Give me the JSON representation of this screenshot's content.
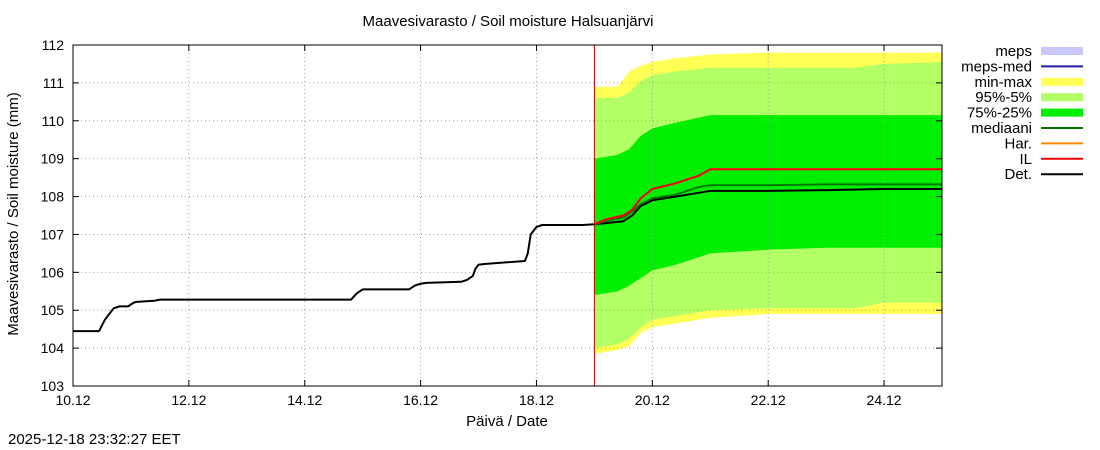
{
  "chart_data": {
    "type": "area",
    "title": "Maavesivarasto / Soil moisture   Halsuanjärvi",
    "xlabel": "Päivä / Date",
    "ylabel": "Maavesivarasto / Soil moisture (mm)",
    "xlim": [
      10.0,
      25.0
    ],
    "ylim": [
      103,
      112
    ],
    "grid": true,
    "x_unit": "days of December",
    "x_ticks": [
      10,
      12,
      14,
      16,
      18,
      20,
      22,
      24
    ],
    "x_tick_labels": [
      "10.12",
      "12.12",
      "14.12",
      "16.12",
      "18.12",
      "20.12",
      "22.12",
      "24.12"
    ],
    "y_ticks": [
      103,
      104,
      105,
      106,
      107,
      108,
      109,
      110,
      111,
      112
    ],
    "y_tick_labels": [
      "103",
      "104",
      "105",
      "106",
      "107",
      "108",
      "109",
      "110",
      "111",
      "112"
    ],
    "forecast_start": 19.0,
    "legend_position": "outside-right",
    "legend": [
      {
        "label": "meps",
        "kind": "band",
        "color": "#c8c8ff"
      },
      {
        "label": "meps-med",
        "kind": "line",
        "color": "#2020a0"
      },
      {
        "label": "min-max",
        "kind": "band",
        "color": "#ffff55"
      },
      {
        "label": "95%-5%",
        "kind": "band",
        "color": "#b3ff66"
      },
      {
        "label": "75%-25%",
        "kind": "band",
        "color": "#00ee00"
      },
      {
        "label": "mediaani",
        "kind": "line",
        "color": "#007700"
      },
      {
        "label": "Har.",
        "kind": "line",
        "color": "#ff8800"
      },
      {
        "label": "IL",
        "kind": "line",
        "color": "#ee0000"
      },
      {
        "label": "Det.",
        "kind": "line",
        "color": "#000000"
      }
    ],
    "bands": [
      {
        "name": "min-max",
        "color": "#ffff55",
        "x": [
          19.0,
          19.4,
          19.6,
          19.8,
          20.0,
          20.4,
          21.0,
          22.0,
          23.0,
          23.5,
          24.0,
          25.0
        ],
        "upper": [
          110.9,
          110.9,
          111.3,
          111.45,
          111.55,
          111.65,
          111.75,
          111.8,
          111.8,
          111.8,
          111.8,
          111.8
        ],
        "lower": [
          103.85,
          103.95,
          104.05,
          104.4,
          104.55,
          104.65,
          104.8,
          104.9,
          104.9,
          104.9,
          104.9,
          104.9
        ]
      },
      {
        "name": "95%-5%",
        "color": "#b3ff66",
        "x": [
          19.0,
          19.4,
          19.6,
          19.8,
          20.0,
          20.4,
          21.0,
          22.0,
          23.0,
          23.5,
          24.0,
          25.0
        ],
        "upper": [
          110.6,
          110.6,
          110.75,
          111.05,
          111.2,
          111.3,
          111.4,
          111.4,
          111.4,
          111.4,
          111.5,
          111.55
        ],
        "lower": [
          104.0,
          104.1,
          104.25,
          104.55,
          104.75,
          104.85,
          105.0,
          105.05,
          105.05,
          105.05,
          105.2,
          105.2
        ]
      },
      {
        "name": "75%-25%",
        "color": "#00ee00",
        "x": [
          19.0,
          19.4,
          19.6,
          19.8,
          20.0,
          20.4,
          21.0,
          22.0,
          23.0,
          23.5,
          24.0,
          25.0
        ],
        "upper": [
          109.0,
          109.1,
          109.25,
          109.6,
          109.8,
          109.95,
          110.15,
          110.15,
          110.15,
          110.15,
          110.15,
          110.15
        ],
        "lower": [
          105.4,
          105.5,
          105.65,
          105.85,
          106.05,
          106.2,
          106.5,
          106.6,
          106.65,
          106.65,
          106.65,
          106.65
        ]
      }
    ],
    "series": [
      {
        "name": "Det.",
        "color": "#000000",
        "width": 2,
        "x": [
          10.0,
          10.45,
          10.55,
          10.7,
          10.8,
          10.95,
          11.0,
          11.05,
          11.1,
          11.4,
          11.5,
          14.8,
          14.9,
          15.0,
          15.8,
          15.9,
          16.0,
          16.1,
          16.7,
          16.8,
          16.9,
          16.95,
          17.0,
          17.1,
          17.8,
          17.85,
          17.9,
          17.95,
          18.0,
          18.1,
          18.8,
          19.0,
          19.2,
          19.5,
          19.65,
          19.8,
          20.0,
          20.4,
          20.8,
          21.0,
          22.0,
          23.0,
          24.0,
          25.0
        ],
        "y": [
          104.45,
          104.45,
          104.75,
          105.05,
          105.1,
          105.1,
          105.15,
          105.2,
          105.22,
          105.25,
          105.28,
          105.28,
          105.45,
          105.55,
          105.55,
          105.65,
          105.7,
          105.72,
          105.75,
          105.8,
          105.9,
          106.1,
          106.2,
          106.22,
          106.3,
          106.5,
          107.0,
          107.1,
          107.2,
          107.25,
          107.25,
          107.27,
          107.3,
          107.35,
          107.5,
          107.75,
          107.9,
          108.0,
          108.1,
          108.15,
          108.15,
          108.17,
          108.2,
          108.2
        ]
      },
      {
        "name": "mediaani",
        "color": "#007700",
        "width": 2,
        "x": [
          19.0,
          19.2,
          19.5,
          19.65,
          19.8,
          20.0,
          20.4,
          20.8,
          21.0,
          22.0,
          23.0,
          24.0,
          25.0
        ],
        "y": [
          107.27,
          107.35,
          107.45,
          107.6,
          107.8,
          107.95,
          108.05,
          108.25,
          108.3,
          108.3,
          108.32,
          108.32,
          108.32
        ]
      },
      {
        "name": "Har.",
        "color": "#ff8800",
        "width": 2,
        "x": [
          19.0,
          19.2,
          19.5,
          19.65,
          19.8,
          20.0,
          20.4,
          20.8,
          21.0,
          22.0,
          23.0,
          24.0,
          25.0
        ],
        "y": [
          107.27,
          107.4,
          107.5,
          107.65,
          107.95,
          108.2,
          108.35,
          108.55,
          108.72,
          108.72,
          108.72,
          108.72,
          108.72
        ]
      },
      {
        "name": "IL",
        "color": "#ee0000",
        "width": 2,
        "x": [
          19.0,
          19.2,
          19.5,
          19.65,
          19.8,
          20.0,
          20.4,
          20.8,
          21.0,
          22.0,
          23.0,
          24.0,
          25.0
        ],
        "y": [
          107.27,
          107.4,
          107.5,
          107.65,
          107.95,
          108.2,
          108.35,
          108.55,
          108.72,
          108.72,
          108.72,
          108.72,
          108.72
        ]
      }
    ]
  },
  "timestamp": "2025-12-18 23:32:27 EET"
}
